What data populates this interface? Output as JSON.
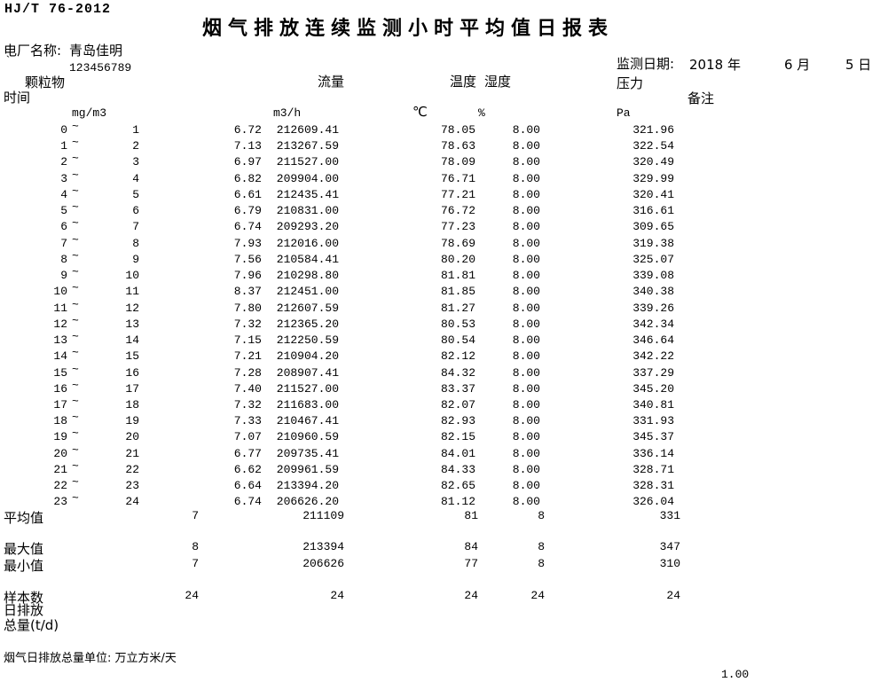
{
  "header": {
    "standard": "HJ/T 76-2012",
    "title": "烟气排放连续监测小时平均值日报表",
    "plant_label": "电厂名称:",
    "plant_name": "青岛佳明",
    "plant_tick": "`",
    "plant_code": "123456789",
    "date_label": "监测日期:",
    "date_year": "2018 年",
    "date_month": "6 月",
    "date_day": "5 日"
  },
  "table": {
    "col_time": "时间",
    "col_dust": "颗粒物",
    "col_flow": "流量",
    "col_temp": "温度",
    "col_humidity": "湿度",
    "col_pressure": "压力",
    "col_remark": "备注",
    "unit_dust": "mg/m3",
    "unit_flow": "m3/h",
    "unit_temp": "℃",
    "unit_humidity": "%",
    "unit_pressure": "Pa",
    "tilde": "~",
    "rows": [
      {
        "start": "0",
        "end": "1",
        "dust": "6.72",
        "flow": "212609.41",
        "temp": "78.05",
        "humidity": "8.00",
        "pressure": "321.96"
      },
      {
        "start": "1",
        "end": "2",
        "dust": "7.13",
        "flow": "213267.59",
        "temp": "78.63",
        "humidity": "8.00",
        "pressure": "322.54"
      },
      {
        "start": "2",
        "end": "3",
        "dust": "6.97",
        "flow": "211527.00",
        "temp": "78.09",
        "humidity": "8.00",
        "pressure": "320.49"
      },
      {
        "start": "3",
        "end": "4",
        "dust": "6.82",
        "flow": "209904.00",
        "temp": "76.71",
        "humidity": "8.00",
        "pressure": "329.99"
      },
      {
        "start": "4",
        "end": "5",
        "dust": "6.61",
        "flow": "212435.41",
        "temp": "77.21",
        "humidity": "8.00",
        "pressure": "320.41"
      },
      {
        "start": "5",
        "end": "6",
        "dust": "6.79",
        "flow": "210831.00",
        "temp": "76.72",
        "humidity": "8.00",
        "pressure": "316.61"
      },
      {
        "start": "6",
        "end": "7",
        "dust": "6.74",
        "flow": "209293.20",
        "temp": "77.23",
        "humidity": "8.00",
        "pressure": "309.65"
      },
      {
        "start": "7",
        "end": "8",
        "dust": "7.93",
        "flow": "212016.00",
        "temp": "78.69",
        "humidity": "8.00",
        "pressure": "319.38"
      },
      {
        "start": "8",
        "end": "9",
        "dust": "7.56",
        "flow": "210584.41",
        "temp": "80.20",
        "humidity": "8.00",
        "pressure": "325.07"
      },
      {
        "start": "9",
        "end": "10",
        "dust": "7.96",
        "flow": "210298.80",
        "temp": "81.81",
        "humidity": "8.00",
        "pressure": "339.08"
      },
      {
        "start": "10",
        "end": "11",
        "dust": "8.37",
        "flow": "212451.00",
        "temp": "81.85",
        "humidity": "8.00",
        "pressure": "340.38"
      },
      {
        "start": "11",
        "end": "12",
        "dust": "7.80",
        "flow": "212607.59",
        "temp": "81.27",
        "humidity": "8.00",
        "pressure": "339.26"
      },
      {
        "start": "12",
        "end": "13",
        "dust": "7.32",
        "flow": "212365.20",
        "temp": "80.53",
        "humidity": "8.00",
        "pressure": "342.34"
      },
      {
        "start": "13",
        "end": "14",
        "dust": "7.15",
        "flow": "212250.59",
        "temp": "80.54",
        "humidity": "8.00",
        "pressure": "346.64"
      },
      {
        "start": "14",
        "end": "15",
        "dust": "7.21",
        "flow": "210904.20",
        "temp": "82.12",
        "humidity": "8.00",
        "pressure": "342.22"
      },
      {
        "start": "15",
        "end": "16",
        "dust": "7.28",
        "flow": "208907.41",
        "temp": "84.32",
        "humidity": "8.00",
        "pressure": "337.29"
      },
      {
        "start": "16",
        "end": "17",
        "dust": "7.40",
        "flow": "211527.00",
        "temp": "83.37",
        "humidity": "8.00",
        "pressure": "345.20"
      },
      {
        "start": "17",
        "end": "18",
        "dust": "7.32",
        "flow": "211683.00",
        "temp": "82.07",
        "humidity": "8.00",
        "pressure": "340.81"
      },
      {
        "start": "18",
        "end": "19",
        "dust": "7.33",
        "flow": "210467.41",
        "temp": "82.93",
        "humidity": "8.00",
        "pressure": "331.93"
      },
      {
        "start": "19",
        "end": "20",
        "dust": "7.07",
        "flow": "210960.59",
        "temp": "82.15",
        "humidity": "8.00",
        "pressure": "345.37"
      },
      {
        "start": "20",
        "end": "21",
        "dust": "6.77",
        "flow": "209735.41",
        "temp": "84.01",
        "humidity": "8.00",
        "pressure": "336.14"
      },
      {
        "start": "21",
        "end": "22",
        "dust": "6.62",
        "flow": "209961.59",
        "temp": "84.33",
        "humidity": "8.00",
        "pressure": "328.71"
      },
      {
        "start": "22",
        "end": "23",
        "dust": "6.64",
        "flow": "213394.20",
        "temp": "82.65",
        "humidity": "8.00",
        "pressure": "328.31"
      },
      {
        "start": "23",
        "end": "24",
        "dust": "6.74",
        "flow": "206626.20",
        "temp": "81.12",
        "humidity": "8.00",
        "pressure": "326.04"
      }
    ],
    "summary": [
      {
        "label": "平均值",
        "dust": "7",
        "flow": "211109",
        "temp": "81",
        "humidity": "8",
        "pressure": "331"
      },
      {
        "label": "最大值",
        "dust": "8",
        "flow": "213394",
        "temp": "84",
        "humidity": "8",
        "pressure": "347"
      },
      {
        "label": "最小值",
        "dust": "7",
        "flow": "206626",
        "temp": "77",
        "humidity": "8",
        "pressure": "310"
      },
      {
        "label": "样本数",
        "dust": "24",
        "flow": "24",
        "temp": "24",
        "humidity": "24",
        "pressure": "24"
      }
    ]
  },
  "footer": {
    "daily_line1": "日排放",
    "daily_line2": "总量(t/d)",
    "unit_note": "烟气日排放总量单位: 万立方米/天",
    "page_value": "1.00"
  }
}
